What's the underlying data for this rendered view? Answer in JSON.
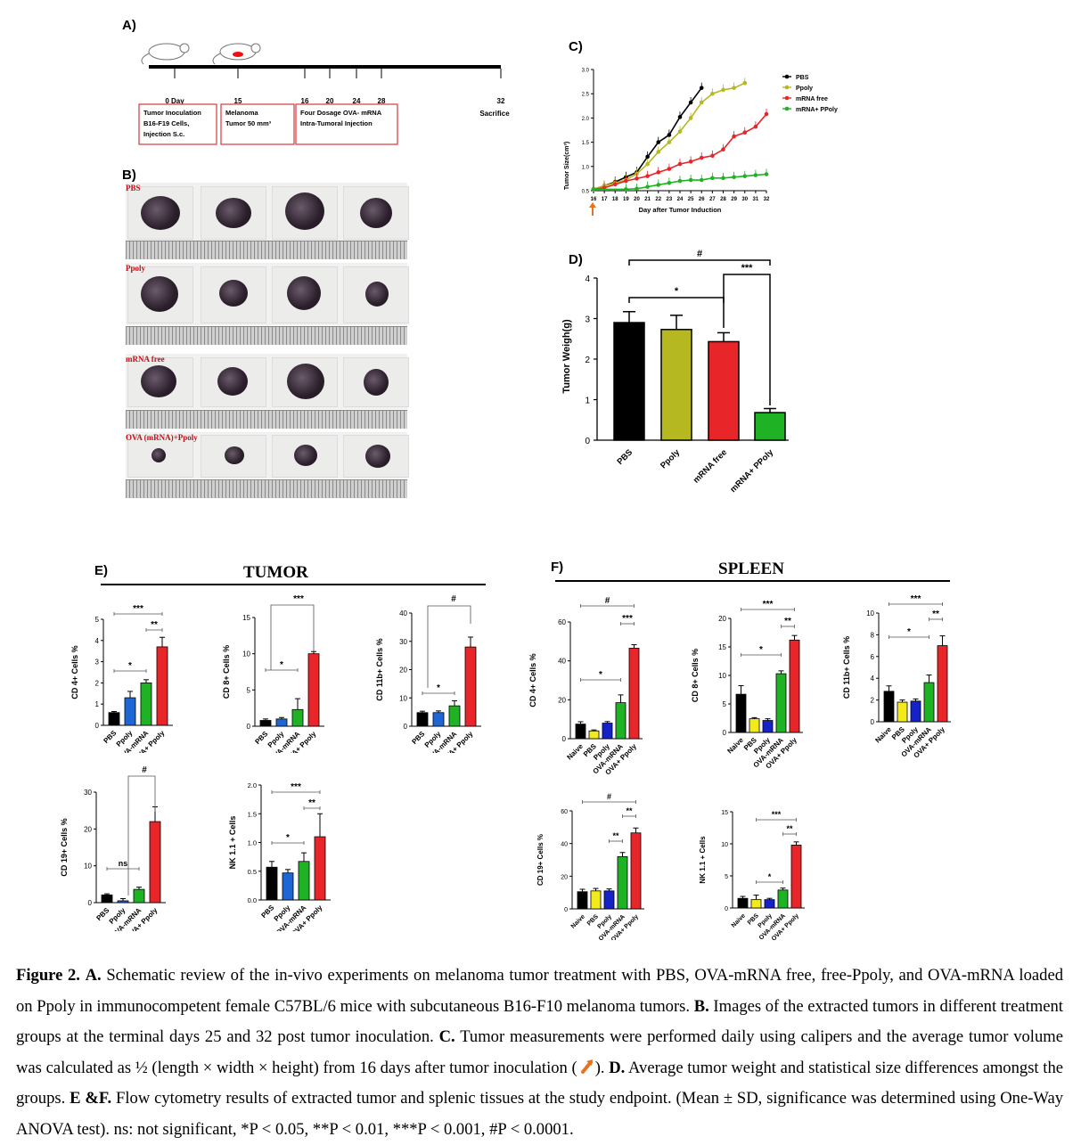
{
  "panelA": {
    "label": "A)",
    "days": [
      "0 Day",
      "15",
      "16",
      "20",
      "24",
      "28",
      "32"
    ],
    "box1": [
      "Tumor Inoculation",
      "B16-F19 Cells,",
      "Injection S.c."
    ],
    "box2": [
      "Melanoma",
      "Tumor 50 mm³"
    ],
    "box3": [
      "Four Dosage OVA- mRNA",
      "Intra-Tumoral Injection"
    ],
    "sacrifice": "Sacrifice"
  },
  "panelB": {
    "label": "B)",
    "groups": [
      "PBS",
      "Ppoly",
      "mRNA free",
      "OVA (mRNA)+Ppoly"
    ]
  },
  "panelC": {
    "label": "C)",
    "ylabel": "Tumor Size(cm³)",
    "xlabel": "Day after Tumor Induction",
    "yticks": [
      "0.5",
      "1.0",
      "1.5",
      "2.0",
      "2.5",
      "3.0"
    ],
    "xticks": [
      "16",
      "17",
      "18",
      "19",
      "20",
      "21",
      "22",
      "23",
      "24",
      "25",
      "26",
      "27",
      "28",
      "29",
      "30",
      "31",
      "32"
    ],
    "legend": [
      "PBS",
      "Ppoly",
      "mRNA free",
      "mRNA+ PPoly"
    ],
    "colors": [
      "#000000",
      "#b5b820",
      "#e8262a",
      "#1fb224"
    ]
  },
  "panelD": {
    "label": "D)",
    "ylabel": "Tumor Weigh(g)",
    "categories": [
      "PBS",
      "Ppoly",
      "mRNA free",
      "mRNA+ PPoly"
    ],
    "values": [
      2.9,
      2.73,
      2.43,
      0.68
    ],
    "errors": [
      0.27,
      0.35,
      0.22,
      0.1
    ],
    "colors": [
      "#000000",
      "#b5b820",
      "#e8262a",
      "#1fb224"
    ],
    "yticks": [
      "0",
      "1",
      "2",
      "3",
      "4"
    ],
    "sig": [
      "#",
      "***",
      "*"
    ]
  },
  "panelE": {
    "label": "E)",
    "title": "TUMOR"
  },
  "panelF": {
    "label": "F)",
    "title": "SPLEEN"
  },
  "chart_data": [
    {
      "type": "line",
      "id": "C",
      "x": [
        16,
        17,
        18,
        19,
        20,
        21,
        22,
        23,
        24,
        25,
        26,
        27,
        28,
        29,
        30,
        31,
        32
      ],
      "series": [
        {
          "name": "PBS",
          "values": [
            0.53,
            0.6,
            0.68,
            0.78,
            0.88,
            1.2,
            1.5,
            1.65,
            2.02,
            2.32,
            2.62,
            null,
            null,
            null,
            null,
            null,
            null
          ]
        },
        {
          "name": "Ppoly",
          "values": [
            0.53,
            0.6,
            0.66,
            0.72,
            0.85,
            1.05,
            1.3,
            1.5,
            1.72,
            2.0,
            2.32,
            2.5,
            2.58,
            2.62,
            2.72,
            null,
            null
          ]
        },
        {
          "name": "mRNA free",
          "values": [
            0.53,
            0.56,
            0.63,
            0.7,
            0.75,
            0.8,
            0.88,
            0.95,
            1.05,
            1.1,
            1.18,
            1.22,
            1.35,
            1.62,
            1.7,
            1.82,
            2.08
          ]
        },
        {
          "name": "mRNA+ PPoly",
          "values": [
            0.53,
            null,
            null,
            0.53,
            0.54,
            0.58,
            0.62,
            0.66,
            0.7,
            0.72,
            0.72,
            0.76,
            0.76,
            0.78,
            0.8,
            0.82,
            0.84
          ]
        }
      ],
      "ylim": [
        0.5,
        3.0
      ]
    },
    {
      "type": "bar",
      "id": "D",
      "categories": [
        "PBS",
        "Ppoly",
        "mRNA free",
        "mRNA+ PPoly"
      ],
      "values": [
        2.9,
        2.73,
        2.43,
        0.68
      ],
      "ylim": [
        0,
        4
      ]
    },
    {
      "type": "bar",
      "id": "E1",
      "ylabel": "CD 4+ Cells %",
      "categories": [
        "PBS",
        "Ppoly",
        "OVA-mRNA",
        "OVA+ Ppoly"
      ],
      "values": [
        0.6,
        1.3,
        2.0,
        3.7
      ],
      "errors": [
        0.05,
        0.3,
        0.15,
        0.45
      ],
      "ylim": [
        0,
        5
      ],
      "yticks": [
        "0",
        "1",
        "2",
        "3",
        "4",
        "5"
      ]
    },
    {
      "type": "bar",
      "id": "E2",
      "ylabel": "CD 8+ Cells %",
      "categories": [
        "PBS",
        "Ppoly",
        "OVA-mRNA",
        "OVA+ Ppoly"
      ],
      "values": [
        0.8,
        1.0,
        2.3,
        10.0
      ],
      "errors": [
        0.2,
        0.2,
        1.5,
        0.3
      ],
      "ylim": [
        0,
        15
      ],
      "yticks": [
        "0",
        "5",
        "10",
        "15"
      ]
    },
    {
      "type": "bar",
      "id": "E3",
      "ylabel": "CD 11b+ Cells %",
      "categories": [
        "PBS",
        "Ppoly",
        "OVA-mRNA",
        "OVA+ Ppoly"
      ],
      "values": [
        4.8,
        4.8,
        7.2,
        28.0
      ],
      "errors": [
        0.5,
        0.6,
        1.8,
        3.5
      ],
      "ylim": [
        0,
        40
      ],
      "yticks": [
        "0",
        "10",
        "20",
        "30",
        "40"
      ]
    },
    {
      "type": "bar",
      "id": "E4",
      "ylabel": "CD 19+ Cells %",
      "categories": [
        "PBS",
        "Ppoly",
        "OVA-mRNA",
        "OVA+ Ppoly"
      ],
      "values": [
        2.1,
        0.5,
        3.6,
        22.0
      ],
      "errors": [
        0.3,
        0.6,
        0.6,
        4.0
      ],
      "ylim": [
        0,
        30
      ],
      "yticks": [
        "0",
        "10",
        "20",
        "30"
      ]
    },
    {
      "type": "bar",
      "id": "E5",
      "ylabel": "NK 1.1 + Cells",
      "categories": [
        "PBS",
        "Ppoly",
        "OVA-mRNA",
        "OVA+ Ppoly"
      ],
      "values": [
        0.57,
        0.47,
        0.67,
        1.1
      ],
      "errors": [
        0.1,
        0.06,
        0.15,
        0.4
      ],
      "ylim": [
        0,
        2.0
      ],
      "yticks": [
        "0.0",
        "0.5",
        "1.0",
        "1.5",
        "2.0"
      ]
    },
    {
      "type": "bar",
      "id": "F1",
      "ylabel": "CD 4+ Cells %",
      "categories": [
        "Naive",
        "PBS",
        "Ppoly",
        "OVA-mRNA",
        "OVA+ Ppoly"
      ],
      "values": [
        7.5,
        4.0,
        8.0,
        18.5,
        46.5
      ],
      "errors": [
        1.2,
        0.5,
        0.8,
        4.0,
        1.8
      ],
      "ylim": [
        0,
        60
      ],
      "yticks": [
        "0",
        "20",
        "40",
        "60"
      ]
    },
    {
      "type": "bar",
      "id": "F2",
      "ylabel": "CD 8+ Cells %",
      "categories": [
        "Naive",
        "PBS",
        "Ppoly",
        "OVA-mRNA",
        "OVA+ Ppoly"
      ],
      "values": [
        6.7,
        2.4,
        2.1,
        10.3,
        16.2
      ],
      "errors": [
        1.5,
        0.2,
        0.3,
        0.5,
        0.8
      ],
      "ylim": [
        0,
        20
      ],
      "yticks": [
        "0",
        "5",
        "10",
        "15",
        "20"
      ]
    },
    {
      "type": "bar",
      "id": "F3",
      "ylabel": "CD 11b+ Cells %",
      "categories": [
        "Naive",
        "PBS",
        "Ppoly",
        "OVA-mRNA",
        "OVA+ Ppoly"
      ],
      "values": [
        2.8,
        1.8,
        1.9,
        3.6,
        7.0
      ],
      "errors": [
        0.5,
        0.2,
        0.2,
        0.7,
        0.9
      ],
      "ylim": [
        0,
        10
      ],
      "yticks": [
        "0",
        "2",
        "4",
        "6",
        "8",
        "10"
      ]
    },
    {
      "type": "bar",
      "id": "F4",
      "ylabel": "CD 19+ Cells %",
      "categories": [
        "Naive",
        "PBS",
        "Ppoly",
        "OVA-mRNA",
        "OVA+ Ppoly"
      ],
      "values": [
        10.5,
        11.0,
        11.0,
        32.0,
        46.5
      ],
      "errors": [
        1.5,
        1.5,
        1.2,
        2.5,
        3.0
      ],
      "ylim": [
        0,
        60
      ],
      "yticks": [
        "0",
        "20",
        "40",
        "60"
      ]
    },
    {
      "type": "bar",
      "id": "F5",
      "ylabel": "NK 1.1 + Cells",
      "categories": [
        "Naive",
        "PBS",
        "Ppoly",
        "OVA-mRNA",
        "OVA+ Ppoly"
      ],
      "values": [
        1.5,
        1.3,
        1.3,
        2.8,
        9.8
      ],
      "errors": [
        0.3,
        0.7,
        0.2,
        0.3,
        0.5
      ],
      "ylim": [
        0,
        15
      ],
      "yticks": [
        "0",
        "5",
        "10",
        "15"
      ]
    }
  ],
  "smallColorsE": [
    "#000000",
    "#1e66d4",
    "#1fb224",
    "#e8262a"
  ],
  "smallColorsF": [
    "#000000",
    "#f2ea1c",
    "#1422c8",
    "#1fb224",
    "#e8262a"
  ],
  "sigE": {
    "E1": [
      {
        "a": 0,
        "b": 3,
        "t": "***"
      },
      {
        "a": 2,
        "b": 3,
        "t": "**"
      },
      {
        "a": 0,
        "b": 2,
        "t": "*"
      }
    ],
    "E2": [
      {
        "a": 3,
        "b": 3,
        "t": "***"
      },
      {
        "a": 0,
        "b": 2,
        "t": "*"
      }
    ],
    "E3": [
      {
        "a": 3,
        "b": 3,
        "t": "#"
      },
      {
        "a": 0,
        "b": 2,
        "t": "*"
      }
    ],
    "E4": [
      {
        "a": 3,
        "b": 3,
        "t": "#"
      },
      {
        "a": 0,
        "b": 2,
        "t": "ns"
      }
    ],
    "E5": [
      {
        "a": 0,
        "b": 3,
        "t": "***"
      },
      {
        "a": 2,
        "b": 3,
        "t": "**"
      },
      {
        "a": 0,
        "b": 2,
        "t": "*"
      }
    ]
  },
  "caption": {
    "fig": "Figure 2.",
    "a_label": "A.",
    "a_text": " Schematic review of the in-vivo experiments on melanoma tumor treatment with PBS, OVA-mRNA free, free-Ppoly, and OVA-mRNA loaded on Ppoly in immunocompetent female C57BL/6 mice with subcutaneous B16-F10 melanoma tumors. ",
    "b_label": "B.",
    "b_text": " Images of the extracted tumors in different treatment groups at the terminal days 25 and 32 post tumor inoculation. ",
    "c_label": "C.",
    "c_text": " Tumor measurements were performed daily using calipers and the average tumor volume was calculated as ½ (length × width × height) from 16 days after tumor inoculation (",
    "c_text2": "). ",
    "d_label": "D.",
    "d_text": " Average tumor weight and statistical size differences amongst the groups. ",
    "ef_label": "E &F.",
    "ef_text": " Flow cytometry results of extracted tumor and splenic tissues at the study endpoint. (Mean ± SD, significance was determined using One-Way ANOVA test). ns: not significant, *P < 0.05, **P < 0.01, ***P < 0.001, #P < 0.0001."
  }
}
